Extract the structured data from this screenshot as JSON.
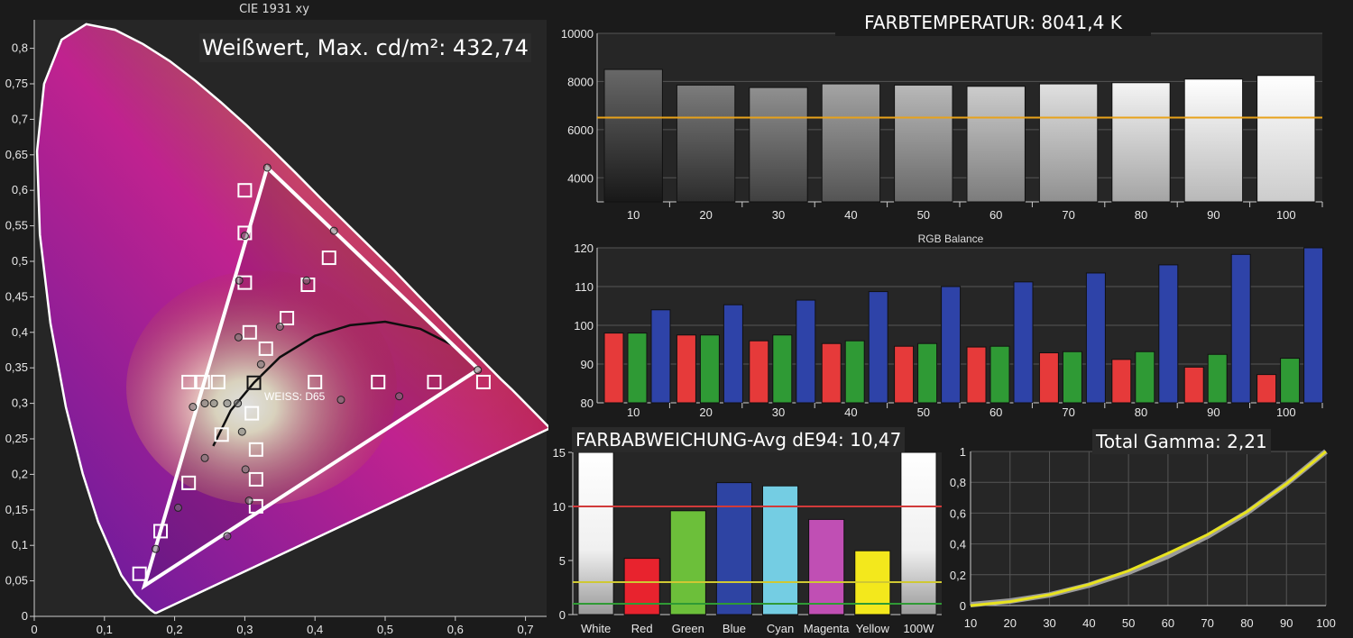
{
  "cie": {
    "title": "CIE 1931 xy",
    "white_label": "Weißwert, Max. cd/m²: 432,74",
    "weiss_label": "WEISS: D65",
    "x_ticks": [
      "0",
      "0,1",
      "0,2",
      "0,3",
      "0,4",
      "0,5",
      "0,6",
      "0,7"
    ],
    "y_ticks": [
      "0",
      "0,05",
      "0,1",
      "0,15",
      "0,2",
      "0,25",
      "0,3",
      "0,35",
      "0,4",
      "0,45",
      "0,5",
      "0,55",
      "0,6",
      "0,65",
      "0,7",
      "0,75",
      "0,8"
    ]
  },
  "farbtemp": {
    "title": "FARBTEMPERATUR: 8041,4 K",
    "y_ticks": [
      "4000",
      "6000",
      "8000",
      "10000"
    ],
    "categories": [
      "10",
      "20",
      "30",
      "40",
      "50",
      "60",
      "70",
      "80",
      "90",
      "100"
    ]
  },
  "rgb": {
    "title": "RGB Balance",
    "y_ticks": [
      "80",
      "90",
      "100",
      "110",
      "120"
    ],
    "categories": [
      "10",
      "20",
      "30",
      "40",
      "50",
      "60",
      "70",
      "80",
      "90",
      "100"
    ]
  },
  "de": {
    "title": "FARBABWEICHUNG-Avg dE94: 10,47",
    "y_ticks": [
      "0",
      "5",
      "10",
      "15"
    ],
    "categories": [
      "White",
      "Red",
      "Green",
      "Blue",
      "Cyan",
      "Magenta",
      "Yellow",
      "100W"
    ]
  },
  "gamma": {
    "title": "Total Gamma: 2,21",
    "y_ticks": [
      "0",
      "0,2",
      "0,4",
      "0,6",
      "0,8",
      "1"
    ],
    "x_ticks": [
      "10",
      "20",
      "30",
      "40",
      "50",
      "60",
      "70",
      "80",
      "90",
      "100"
    ]
  },
  "chart_data": [
    {
      "type": "scatter",
      "title": "CIE 1931 xy",
      "xlim": [
        0,
        0.74
      ],
      "ylim": [
        0,
        0.84
      ],
      "gamut_measured": [
        [
          0.633,
          0.348
        ],
        [
          0.332,
          0.632
        ],
        [
          0.157,
          0.043
        ]
      ],
      "gamut_reference": [
        [
          0.64,
          0.33
        ],
        [
          0.3,
          0.6
        ],
        [
          0.15,
          0.06
        ]
      ],
      "targets": [
        [
          0.3,
          0.6
        ],
        [
          0.3,
          0.54
        ],
        [
          0.3,
          0.47
        ],
        [
          0.307,
          0.4
        ],
        [
          0.33,
          0.377
        ],
        [
          0.36,
          0.42
        ],
        [
          0.39,
          0.467
        ],
        [
          0.42,
          0.505
        ],
        [
          0.22,
          0.33
        ],
        [
          0.24,
          0.33
        ],
        [
          0.262,
          0.33
        ],
        [
          0.313,
          0.329
        ],
        [
          0.4,
          0.33
        ],
        [
          0.49,
          0.33
        ],
        [
          0.57,
          0.33
        ],
        [
          0.64,
          0.33
        ],
        [
          0.267,
          0.256
        ],
        [
          0.31,
          0.286
        ],
        [
          0.316,
          0.235
        ],
        [
          0.316,
          0.193
        ],
        [
          0.316,
          0.155
        ],
        [
          0.22,
          0.188
        ],
        [
          0.18,
          0.12
        ],
        [
          0.15,
          0.06
        ]
      ],
      "measured": [
        [
          0.332,
          0.632
        ],
        [
          0.427,
          0.543
        ],
        [
          0.3,
          0.536
        ],
        [
          0.292,
          0.473
        ],
        [
          0.388,
          0.473
        ],
        [
          0.35,
          0.408
        ],
        [
          0.291,
          0.393
        ],
        [
          0.323,
          0.355
        ],
        [
          0.632,
          0.347
        ],
        [
          0.52,
          0.31
        ],
        [
          0.437,
          0.305
        ],
        [
          0.226,
          0.295
        ],
        [
          0.243,
          0.3
        ],
        [
          0.256,
          0.3
        ],
        [
          0.275,
          0.3
        ],
        [
          0.29,
          0.3
        ],
        [
          0.296,
          0.26
        ],
        [
          0.301,
          0.207
        ],
        [
          0.306,
          0.163
        ],
        [
          0.243,
          0.223
        ],
        [
          0.205,
          0.153
        ],
        [
          0.173,
          0.095
        ],
        [
          0.275,
          0.113
        ]
      ]
    },
    {
      "type": "bar",
      "title": "FARBTEMPERATUR: 8041,4 K",
      "categories": [
        "10",
        "20",
        "30",
        "40",
        "50",
        "60",
        "70",
        "80",
        "90",
        "100"
      ],
      "values": [
        8500,
        7850,
        7750,
        7900,
        7850,
        7800,
        7900,
        7950,
        8100,
        8250
      ],
      "reference": 6500,
      "ylim": [
        3000,
        10000
      ]
    },
    {
      "type": "bar",
      "title": "RGB Balance",
      "categories": [
        "10",
        "20",
        "30",
        "40",
        "50",
        "60",
        "70",
        "80",
        "90",
        "100"
      ],
      "ylim": [
        80,
        120
      ],
      "series": [
        {
          "name": "",
          "color": "#e63a3a",
          "values": [
            98,
            97.5,
            96,
            95.3,
            94.6,
            94.4,
            92.9,
            91.2,
            89.2,
            87.3
          ]
        },
        {
          "name": "",
          "color": "#2f9a35",
          "values": [
            98,
            97.5,
            97.5,
            96,
            95.3,
            94.6,
            93.2,
            93.2,
            92.5,
            91.5
          ]
        },
        {
          "name": "",
          "color": "#2e43a8",
          "values": [
            104,
            105.3,
            106.5,
            108.7,
            110,
            111.2,
            113.5,
            115.6,
            118.3,
            120
          ]
        }
      ]
    },
    {
      "type": "bar",
      "title": "FARBABWEICHUNG-Avg dE94: 10,47",
      "categories": [
        "White",
        "Red",
        "Green",
        "Blue",
        "Cyan",
        "Magenta",
        "Yellow",
        "100W"
      ],
      "values": [
        15,
        5.2,
        9.6,
        12.2,
        11.9,
        8.8,
        5.9,
        15
      ],
      "colors": [
        "#ffffff",
        "#e8232e",
        "#6cbf3a",
        "#2e44a3",
        "#74cde3",
        "#c04fb4",
        "#f3e81c",
        "#ffffff"
      ],
      "reference_lines": [
        10,
        3,
        1
      ],
      "ylim": [
        0,
        15
      ]
    },
    {
      "type": "line",
      "title": "Total Gamma: 2,21",
      "x": [
        10,
        20,
        30,
        40,
        50,
        60,
        70,
        80,
        90,
        100
      ],
      "series": [
        {
          "name": "",
          "values": [
            0.006,
            0.029,
            0.069,
            0.132,
            0.216,
            0.321,
            0.45,
            0.603,
            0.79,
            1.0
          ]
        },
        {
          "name": "",
          "values": [
            0.0,
            0.026,
            0.071,
            0.137,
            0.226,
            0.339,
            0.46,
            0.609,
            0.79,
            1.0
          ]
        }
      ],
      "xlim": [
        10,
        100
      ],
      "ylim": [
        0,
        1
      ]
    }
  ]
}
